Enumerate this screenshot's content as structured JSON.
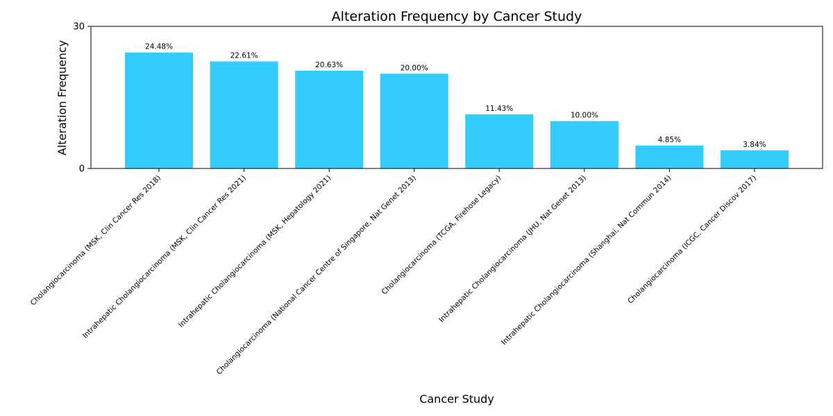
{
  "chart_data": {
    "type": "bar",
    "title": "Alteration Frequency by Cancer Study",
    "xlabel": "Cancer Study",
    "ylabel": "Alteration Frequency",
    "ylim": [
      0,
      30
    ],
    "yticks": [
      "0",
      "30"
    ],
    "grid": false,
    "legend": "none",
    "bar_color": "#33ccff",
    "categories": [
      "Cholangiocarcinoma (MSK, Clin Cancer Res 2018)",
      "Intrahepatic Cholangiocarcinoma (MSK, Clin Cancer Res 2021)",
      "Intrahepatic Cholangiocarcinoma (MSK, Hepatology 2021)",
      "Cholangiocarcinoma (National Cancer Centre of Singapore, Nat Genet 2013)",
      "Cholangiocarcinoma (TCGA, Firehose Legacy)",
      "Intrahepatic Cholangiocarcinoma (JHU, Nat Genet 2013)",
      "Intrahepatic Cholangiocarcinoma (Shanghai, Nat Commun 2014)",
      "Cholangiocarcinoma (ICGC, Cancer Discov 2017)"
    ],
    "values": [
      24.48,
      22.61,
      20.63,
      20.0,
      11.43,
      10.0,
      4.85,
      3.84
    ],
    "value_labels": [
      "24.48%",
      "22.61%",
      "20.63%",
      "20.00%",
      "11.43%",
      "10.00%",
      "4.85%",
      "3.84%"
    ]
  }
}
